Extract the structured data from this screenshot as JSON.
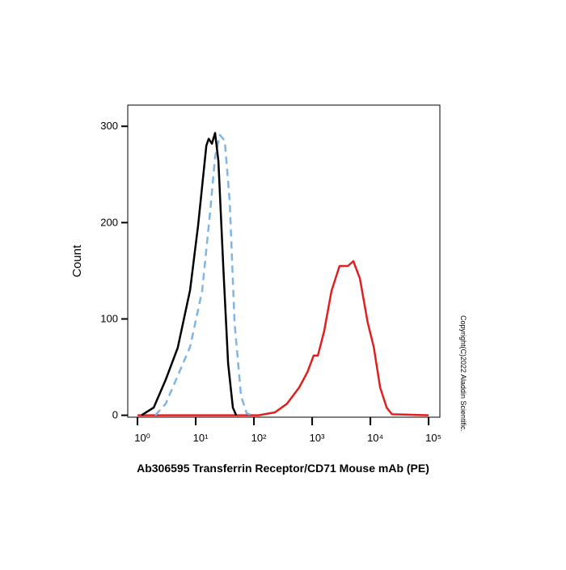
{
  "chart_data": {
    "type": "line",
    "xlabel": "Ab306595 Transferrin Receptor/CD71 Mouse mAb (PE)",
    "ylabel": "Count",
    "annotation": "Copyright(C)2022 Aladdin Scientific.",
    "xscale": "log",
    "xlim": [
      0.68,
      156000
    ],
    "ylim": [
      -2,
      322
    ],
    "xticks": [
      {
        "value": 1,
        "label": "10⁰"
      },
      {
        "value": 10,
        "label": "10¹"
      },
      {
        "value": 100,
        "label": "10²"
      },
      {
        "value": 1000,
        "label": "10³"
      },
      {
        "value": 10000,
        "label": "10⁴"
      },
      {
        "value": 100000,
        "label": "10⁵"
      }
    ],
    "yticks": [
      0,
      100,
      200,
      300
    ],
    "series": [
      {
        "color": "#e02020",
        "dash": false,
        "x": [
          1,
          120,
          230,
          370,
          600,
          830,
          1060,
          1250,
          1600,
          2150,
          2950,
          4100,
          5100,
          6600,
          9000,
          11400,
          14700,
          19000,
          23500,
          100000
        ],
        "values": [
          0,
          0,
          3,
          12,
          29,
          45,
          62,
          62,
          87,
          129,
          155,
          155,
          160,
          142,
          96,
          71,
          29,
          8,
          1,
          0
        ]
      },
      {
        "color": "#7fb6e6",
        "dash": true,
        "x": [
          2.02,
          3.06,
          4.9,
          8.0,
          12.9,
          17.8,
          21.5,
          26,
          31.6,
          38.3,
          46.4,
          60,
          75,
          94
        ],
        "values": [
          0,
          12,
          41,
          71,
          129,
          213,
          268,
          291,
          285,
          222,
          96,
          20,
          2,
          0
        ]
      },
      {
        "color": "#000000",
        "dash": false,
        "x": [
          1.17,
          1.9,
          3.06,
          4.9,
          8.0,
          11,
          15.2,
          16.7,
          19,
          21.5,
          24.5,
          29.7,
          36,
          43.5,
          49.5
        ],
        "values": [
          0,
          8,
          37,
          70,
          130,
          197,
          280,
          287,
          282,
          293,
          264,
          155,
          54,
          8,
          0
        ]
      }
    ]
  }
}
